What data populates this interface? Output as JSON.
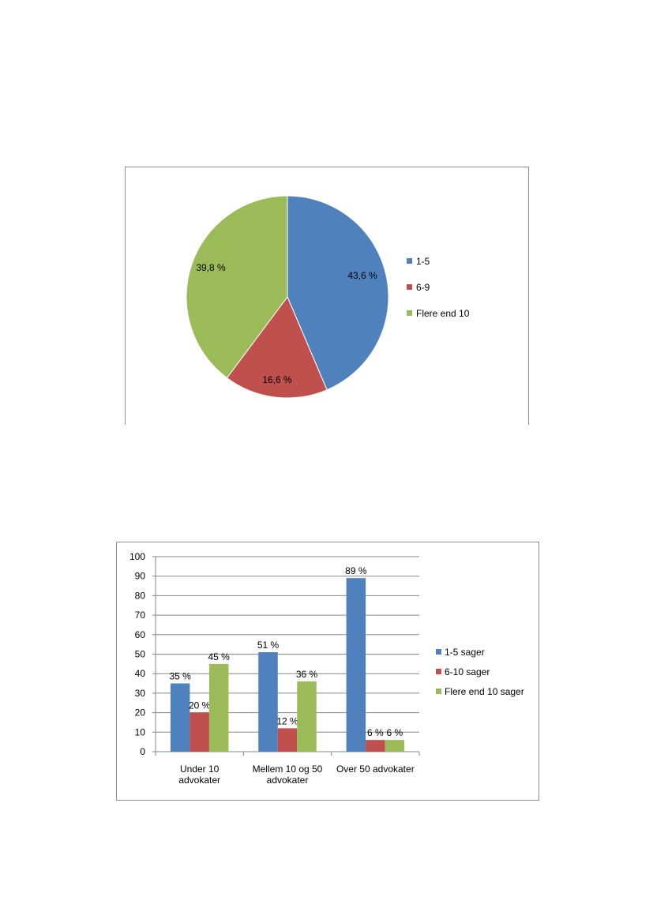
{
  "colors": {
    "series1": "#4f81bd",
    "series2": "#c0504d",
    "series3": "#9bbb59",
    "grid": "#868686",
    "axis": "#868686"
  },
  "chart_data": [
    {
      "type": "pie",
      "slices": [
        {
          "name": "1-5",
          "value": 43.6,
          "label": "43,6 %"
        },
        {
          "name": "6-9",
          "value": 16.6,
          "label": "16,6 %"
        },
        {
          "name": "Flere end 10",
          "value": 39.8,
          "label": "39,8 %"
        }
      ],
      "legend": {
        "position": "right",
        "entries": [
          "1-5",
          "6-9",
          "Flere end 10"
        ]
      }
    },
    {
      "type": "bar",
      "categories": [
        [
          "Under 10",
          "advokater"
        ],
        [
          "Mellem 10 og 50",
          "advokater"
        ],
        [
          "Over 50 advokater"
        ]
      ],
      "series": [
        {
          "name": "1-5 sager",
          "values": [
            35,
            51,
            89
          ],
          "labels": [
            "35  %",
            "51 %",
            "89 %"
          ]
        },
        {
          "name": "6-10 sager",
          "values": [
            20,
            12,
            6
          ],
          "labels": [
            "20 %",
            "12 %",
            "6 %"
          ]
        },
        {
          "name": "Flere end 10 sager",
          "values": [
            45,
            36,
            6
          ],
          "labels": [
            "45 %",
            "36 %",
            "6 %"
          ]
        }
      ],
      "ylim": [
        0,
        100
      ],
      "yticks": [
        "0",
        "10",
        "20",
        "30",
        "40",
        "50",
        "60",
        "70",
        "80",
        "90",
        "100"
      ],
      "grid": true,
      "legend": {
        "position": "right",
        "entries": [
          "1-5 sager",
          "6-10 sager",
          "Flere end 10 sager"
        ]
      }
    }
  ]
}
